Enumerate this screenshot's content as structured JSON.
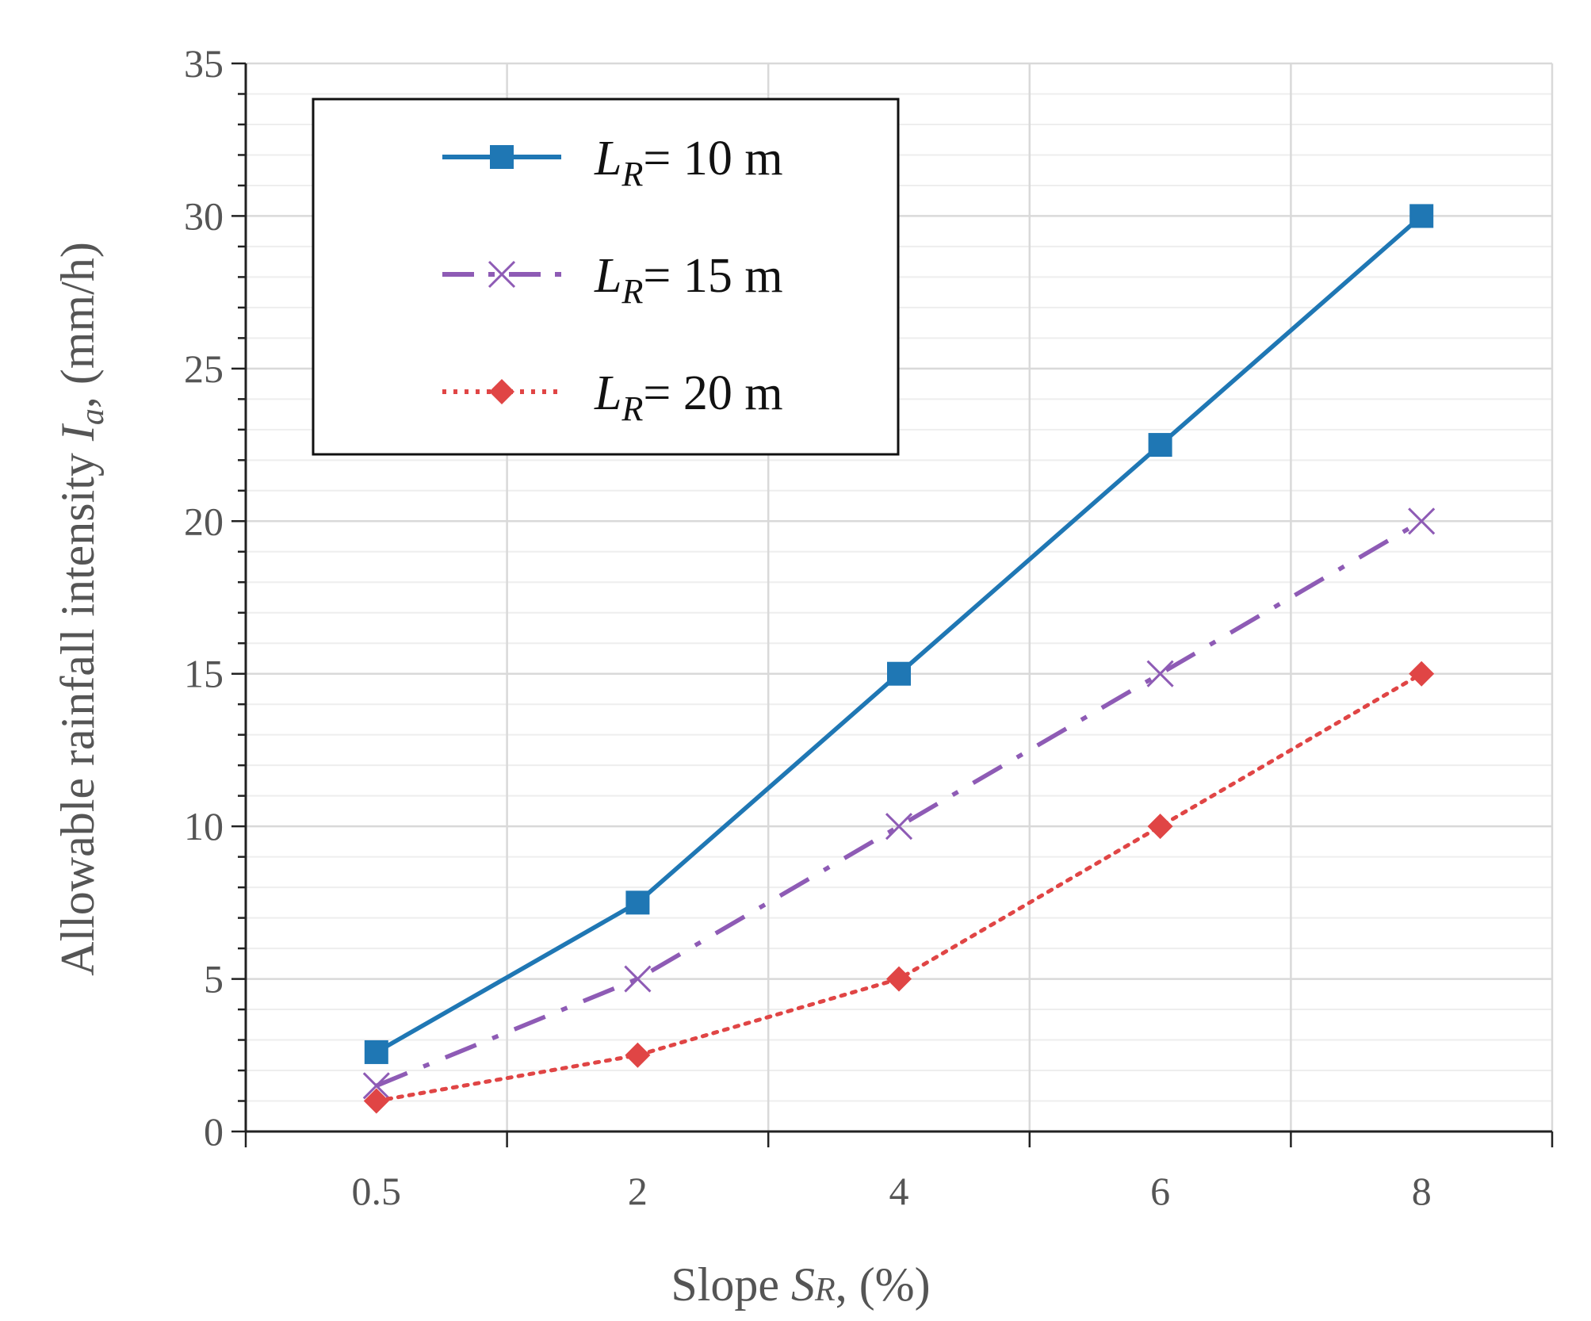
{
  "chart_data": {
    "type": "line",
    "title": "",
    "categories": [
      "0.5",
      "2",
      "4",
      "6",
      "8"
    ],
    "xlabel": {
      "prefix": "Slope ",
      "symbol": "S",
      "sub": "R",
      "suffix": ", (%)"
    },
    "ylabel": {
      "prefix": "Allowable rainfall intensity ",
      "symbol": "I",
      "sub": "a",
      "suffix": ", (mm/h)"
    },
    "ylim": [
      0,
      35
    ],
    "yticks": [
      "0",
      "5",
      "10",
      "15",
      "20",
      "25",
      "30",
      "35"
    ],
    "ytick_values": [
      0,
      5,
      10,
      15,
      20,
      25,
      30,
      35
    ],
    "grid": true,
    "legend_position": "top-left",
    "series": [
      {
        "name": "LR= 10 m",
        "label_symbol": "L",
        "label_sub": "R",
        "label_rest": "= 10 m",
        "values": [
          2.6,
          7.5,
          15,
          22.5,
          30
        ],
        "color": "#1f77b4",
        "marker": "square",
        "line_style": "solid"
      },
      {
        "name": "LR= 15 m",
        "label_symbol": "L",
        "label_sub": "R",
        "label_rest": "= 15 m",
        "values": [
          1.5,
          5,
          10,
          15,
          20
        ],
        "color": "#8e5bb5",
        "marker": "x",
        "line_style": "dash-dot"
      },
      {
        "name": "LR= 20 m",
        "label_symbol": "L",
        "label_sub": "R",
        "label_rest": "= 20 m",
        "values": [
          1,
          2.5,
          5,
          10,
          15
        ],
        "color": "#e04545",
        "marker": "diamond",
        "line_style": "dotted"
      }
    ]
  }
}
